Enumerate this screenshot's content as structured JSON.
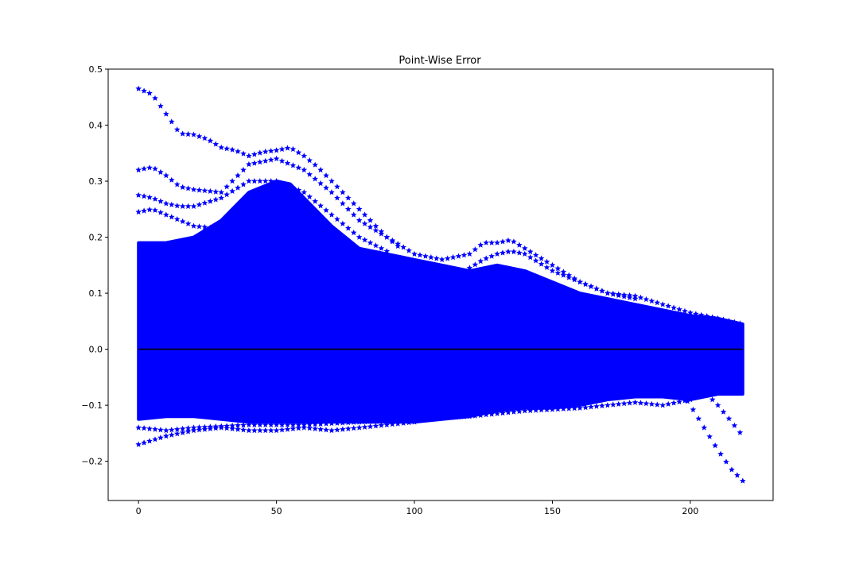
{
  "chart_data": {
    "type": "scatter",
    "title": "Point-Wise Error",
    "xlabel": "",
    "ylabel": "",
    "xlim": [
      -11,
      230
    ],
    "ylim": [
      -0.27,
      0.5
    ],
    "xticks": [
      0,
      50,
      100,
      150,
      200
    ],
    "yticks": [
      -0.2,
      -0.1,
      0.0,
      0.1,
      0.2,
      0.3,
      0.4,
      0.5
    ],
    "ytick_labels": [
      "−0.2",
      "−0.1",
      "0.0",
      "0.1",
      "0.2",
      "0.3",
      "0.4",
      "0.5"
    ],
    "grid": false,
    "marker": "star",
    "colors": {
      "points": "#0000ff",
      "zero_line": "#000000"
    },
    "zero_line": {
      "x": [
        0,
        219
      ],
      "y": [
        0.0,
        0.0
      ]
    },
    "band": {
      "x": [
        0,
        10,
        20,
        30,
        40,
        50,
        55,
        60,
        70,
        80,
        90,
        100,
        110,
        120,
        130,
        140,
        150,
        160,
        170,
        180,
        190,
        200,
        210,
        219
      ],
      "upper": [
        0.19,
        0.19,
        0.2,
        0.23,
        0.28,
        0.3,
        0.295,
        0.27,
        0.22,
        0.18,
        0.17,
        0.16,
        0.15,
        0.14,
        0.15,
        0.14,
        0.12,
        0.1,
        0.09,
        0.08,
        0.07,
        0.06,
        0.055,
        0.045
      ],
      "lower": [
        -0.125,
        -0.12,
        -0.12,
        -0.125,
        -0.13,
        -0.13,
        -0.13,
        -0.13,
        -0.13,
        -0.13,
        -0.13,
        -0.13,
        -0.125,
        -0.12,
        -0.11,
        -0.105,
        -0.105,
        -0.1,
        -0.09,
        -0.085,
        -0.085,
        -0.09,
        -0.08,
        -0.08
      ]
    },
    "series": [
      {
        "x": [
          0,
          5,
          10,
          15,
          20,
          25,
          30,
          35,
          40,
          45,
          50,
          55,
          60,
          65,
          70,
          75,
          80,
          85,
          90,
          95
        ],
        "y": [
          0.465,
          0.455,
          0.42,
          0.385,
          0.383,
          0.375,
          0.36,
          0.355,
          0.345,
          0.352,
          0.355,
          0.36,
          0.345,
          0.325,
          0.3,
          0.275,
          0.25,
          0.225,
          0.2,
          0.18
        ]
      },
      {
        "x": [
          0,
          5,
          10,
          15,
          20,
          30,
          40,
          50,
          55,
          60,
          70,
          80,
          90,
          100,
          110,
          120,
          125,
          130,
          135,
          140,
          150,
          160,
          170,
          180,
          190,
          200,
          210,
          219
        ],
        "y": [
          0.32,
          0.325,
          0.31,
          0.29,
          0.285,
          0.28,
          0.33,
          0.34,
          0.33,
          0.32,
          0.28,
          0.23,
          0.2,
          0.17,
          0.16,
          0.17,
          0.19,
          0.19,
          0.195,
          0.18,
          0.15,
          0.12,
          0.1,
          0.095,
          0.08,
          0.065,
          0.055,
          0.045
        ]
      },
      {
        "x": [
          0,
          5,
          10,
          15,
          20,
          30,
          40,
          50,
          60,
          70,
          80,
          90
        ],
        "y": [
          0.275,
          0.27,
          0.26,
          0.255,
          0.255,
          0.27,
          0.3,
          0.3,
          0.28,
          0.24,
          0.2,
          0.175
        ]
      },
      {
        "x": [
          0,
          5,
          10,
          15,
          20,
          30
        ],
        "y": [
          0.245,
          0.25,
          0.24,
          0.23,
          0.22,
          0.215
        ]
      },
      {
        "x": [
          120,
          125,
          130,
          135,
          140,
          150,
          160,
          170,
          180
        ],
        "y": [
          0.145,
          0.16,
          0.17,
          0.175,
          0.17,
          0.14,
          0.12,
          0.1,
          0.09
        ]
      },
      {
        "x": [
          0,
          10,
          20,
          30,
          40,
          50,
          60,
          70,
          80,
          90,
          100
        ],
        "y": [
          -0.17,
          -0.155,
          -0.145,
          -0.14,
          -0.145,
          -0.145,
          -0.14,
          -0.145,
          -0.14,
          -0.135,
          -0.13
        ]
      },
      {
        "x": [
          0,
          10,
          20,
          40,
          60,
          80,
          100,
          120,
          140,
          160,
          180,
          190,
          200
        ],
        "y": [
          -0.14,
          -0.145,
          -0.14,
          -0.135,
          -0.135,
          -0.13,
          -0.125,
          -0.12,
          -0.11,
          -0.105,
          -0.095,
          -0.1,
          -0.09
        ]
      },
      {
        "x": [
          195,
          200,
          205,
          210,
          215,
          219
        ],
        "y": [
          -0.065,
          -0.1,
          -0.14,
          -0.18,
          -0.215,
          -0.235
        ]
      },
      {
        "x": [
          200,
          205,
          210,
          215,
          219
        ],
        "y": [
          -0.06,
          -0.075,
          -0.1,
          -0.13,
          -0.155
        ]
      }
    ]
  }
}
